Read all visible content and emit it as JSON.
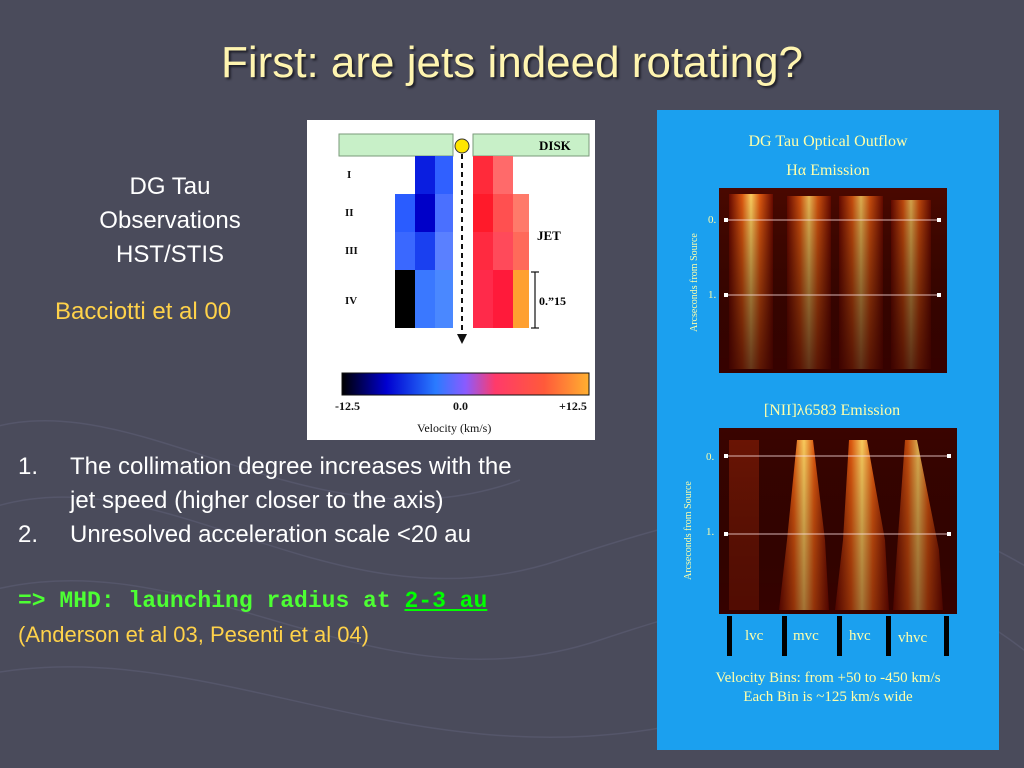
{
  "slide": {
    "title": "First: are jets indeed rotating?",
    "observations": [
      "DG Tau",
      "Observations",
      "HST/STIS"
    ],
    "reference1": "Bacciotti et al 00",
    "list": [
      {
        "num": "1.",
        "lines": [
          "The collimation degree increases with the",
          "jet speed (higher closer to the axis)"
        ]
      },
      {
        "num": "2.",
        "lines": [
          "Unresolved acceleration scale <20 au"
        ]
      }
    ],
    "conclusion_prefix": "=> MHD: launching radius at ",
    "conclusion_highlight": "2-3 au",
    "reference2": "(Anderson et al 03, Pesenti et al 04)"
  },
  "figure1": {
    "disk_label": "DISK",
    "jet_label": "JET",
    "rows": [
      "I",
      "II",
      "III",
      "IV"
    ],
    "scale_label": "0.”15",
    "colorbar_ticks": [
      "-12.5",
      "0.0",
      "+12.5"
    ],
    "colorbar_label": "Velocity (km/s)"
  },
  "figure2": {
    "title": "DG Tau Optical Outflow",
    "subtitle": "Hα Emission",
    "panel2_title": "[NII]λ6583 Emission",
    "y_axis_label": "Arcseconds from Source",
    "y_ticks": [
      "0.",
      "1."
    ],
    "bins": [
      "lvc",
      "mvc",
      "hvc",
      "vhvc"
    ],
    "caption": [
      "Velocity Bins: from +50 to -450 km/s",
      "Each Bin is ~125 km/s wide"
    ]
  },
  "colors": {
    "background": "#4a4b5b",
    "title": "#fff5b0",
    "reference": "#ffd24a",
    "conclusion": "#4dff33",
    "figure2_bg": "#1ba0ef"
  }
}
